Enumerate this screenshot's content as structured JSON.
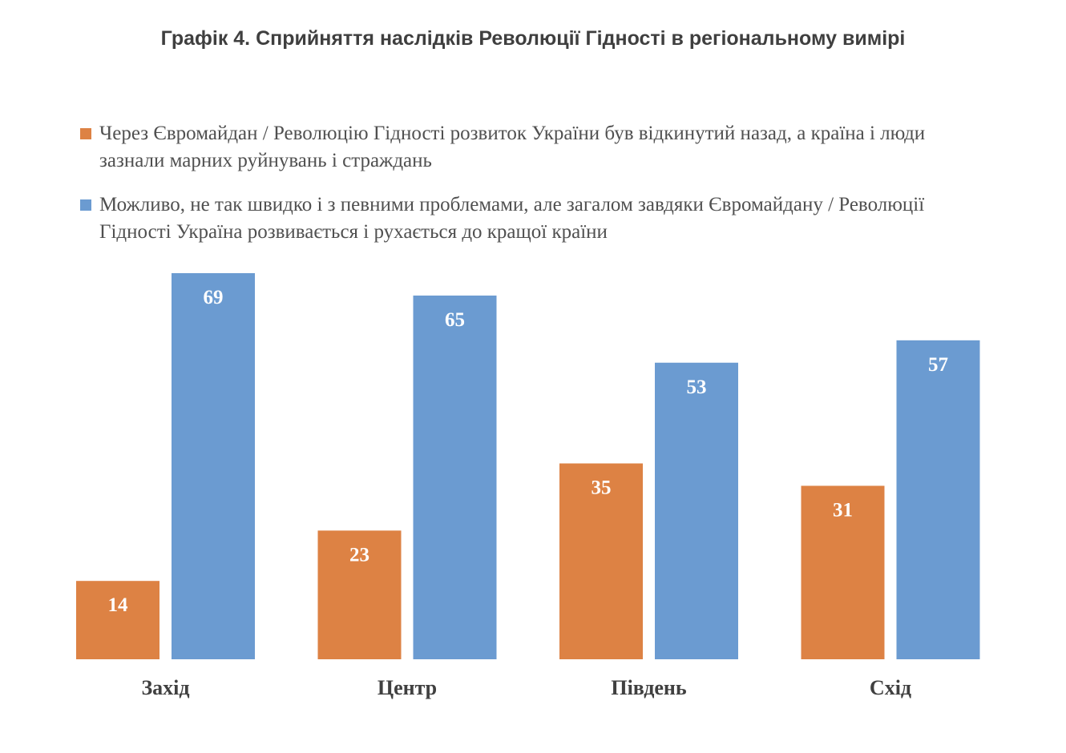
{
  "chart_data": {
    "type": "bar",
    "title": "Графік 4. Сприйняття наслідків Революції Гідності в регіональному вимірі",
    "categories": [
      "Захід",
      "Центр",
      "Південь",
      "Схід"
    ],
    "series": [
      {
        "name": "Через Євромайдан / Революцію Гідності розвиток України був відкинутий назад, а країна і люди зазнали марних руйнувань і страждань",
        "color": "#dd8244",
        "values": [
          14,
          23,
          35,
          31
        ]
      },
      {
        "name": "Можливо, не так швидко і з певними проблемами, але загалом завдяки Євромайдану / Революції Гідності Україна розвивається і рухається до кращої країни",
        "color": "#6b9bd1",
        "values": [
          69,
          65,
          53,
          57
        ]
      }
    ],
    "ylim": [
      0,
      69
    ],
    "legend_position": "top",
    "grid": false,
    "data_labels": true
  }
}
